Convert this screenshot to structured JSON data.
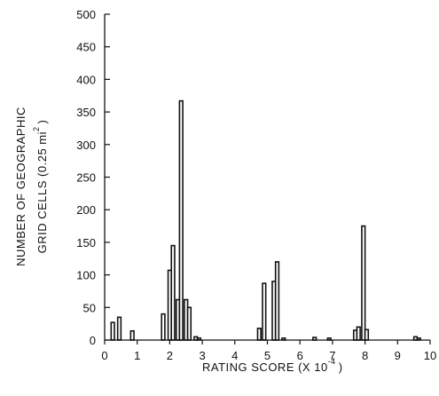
{
  "chart_data": {
    "type": "bar",
    "xlabel_text": "RATING SCORE (X 10",
    "xlabel_exp": "-4",
    "xlabel_close": ")",
    "ylabel_line1": "NUMBER OF GEOGRAPHIC",
    "ylabel_line2_text": "GRID CELLS (0.25 mi",
    "ylabel_line2_exp": "2",
    "ylabel_line2_close": ")",
    "xlim": [
      0,
      10
    ],
    "ylim": [
      0,
      500
    ],
    "x_ticks": [
      "0",
      "1",
      "2",
      "3",
      "4",
      "5",
      "6",
      "7",
      "8",
      "9",
      "10"
    ],
    "y_ticks": [
      "0",
      "50",
      "100",
      "150",
      "200",
      "250",
      "300",
      "350",
      "400",
      "450",
      "500"
    ],
    "bar_width": 0.1,
    "bars": [
      {
        "x": 0.2,
        "value": 27
      },
      {
        "x": 0.4,
        "value": 35
      },
      {
        "x": 0.8,
        "value": 14
      },
      {
        "x": 1.75,
        "value": 40
      },
      {
        "x": 1.95,
        "value": 107
      },
      {
        "x": 2.05,
        "value": 145
      },
      {
        "x": 2.2,
        "value": 62
      },
      {
        "x": 2.3,
        "value": 367
      },
      {
        "x": 2.45,
        "value": 62
      },
      {
        "x": 2.55,
        "value": 50
      },
      {
        "x": 2.75,
        "value": 5
      },
      {
        "x": 2.85,
        "value": 3
      },
      {
        "x": 4.7,
        "value": 18
      },
      {
        "x": 4.85,
        "value": 87
      },
      {
        "x": 5.15,
        "value": 90
      },
      {
        "x": 5.25,
        "value": 120
      },
      {
        "x": 5.45,
        "value": 3
      },
      {
        "x": 6.4,
        "value": 4
      },
      {
        "x": 6.85,
        "value": 3
      },
      {
        "x": 7.65,
        "value": 15
      },
      {
        "x": 7.75,
        "value": 20
      },
      {
        "x": 7.9,
        "value": 175
      },
      {
        "x": 8.0,
        "value": 16
      },
      {
        "x": 9.5,
        "value": 5
      },
      {
        "x": 9.6,
        "value": 3
      }
    ]
  }
}
